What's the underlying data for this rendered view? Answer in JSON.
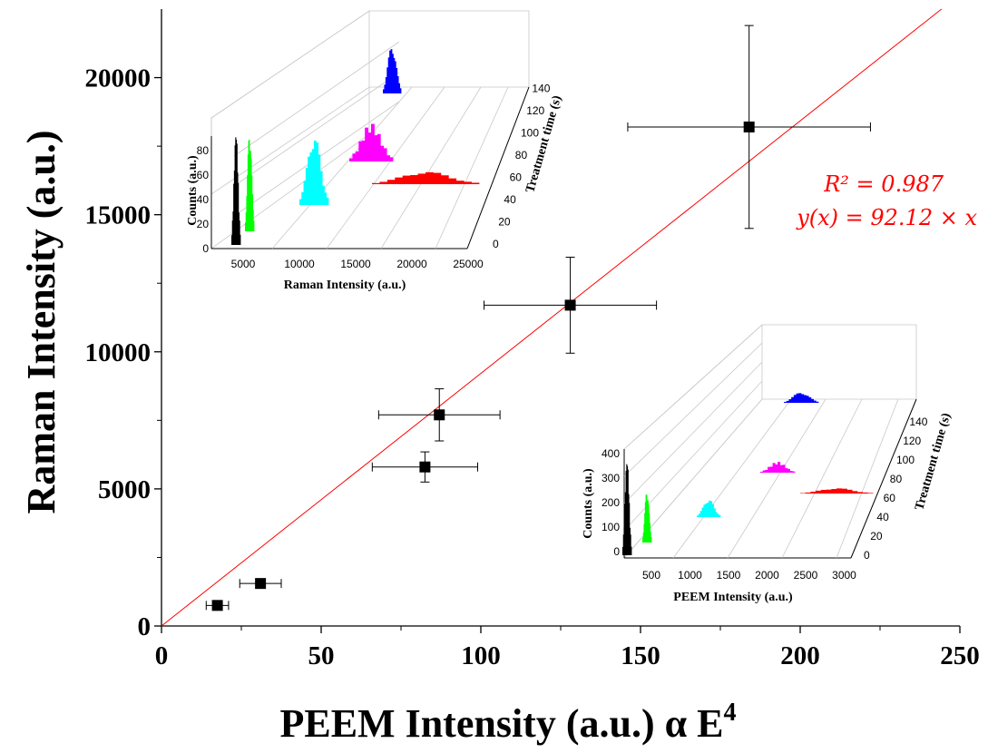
{
  "chart_data": [
    {
      "type": "scatter",
      "xlabel": "PEEM Intensity (a.u.) α E",
      "xlabel_superscript": "4",
      "ylabel": "Raman Intensity (a.u.)",
      "xlim": [
        0,
        250
      ],
      "ylim": [
        0,
        22500
      ],
      "x_ticks": [
        0,
        50,
        100,
        150,
        200,
        250
      ],
      "y_ticks": [
        0,
        5000,
        10000,
        15000,
        20000
      ],
      "points": [
        {
          "x": 17.5,
          "y": 750,
          "xerr": 3.5,
          "yerr": 150
        },
        {
          "x": 31,
          "y": 1550,
          "xerr": 6.5,
          "yerr": 150
        },
        {
          "x": 82.5,
          "y": 5800,
          "xerr": 16.5,
          "yerr": 550
        },
        {
          "x": 87,
          "y": 7700,
          "xerr": 19,
          "yerr": 950
        },
        {
          "x": 128,
          "y": 11700,
          "xerr": 27,
          "yerr": 1750
        },
        {
          "x": 184,
          "y": 18200,
          "xerr": 38,
          "yerr": 3700
        }
      ],
      "fit": {
        "slope": 92.12,
        "color": "#ff0000",
        "r2_label": "R² = 0.987",
        "eq_label": "y(x) = 92.12 × x"
      },
      "marker_color": "#000000"
    },
    {
      "type": "histogram-3d",
      "inset": "top-left",
      "xlabel": "Raman Intensity (a.u.)",
      "ylabel": "Counts (a.u.)",
      "zlabel": "Treatment time (s)",
      "x_ticks": [
        "5000",
        "10000",
        "15000",
        "20000",
        "25000"
      ],
      "y_ticks": [
        "0",
        "20",
        "40",
        "60",
        "80"
      ],
      "z_ticks": [
        "0",
        "20",
        "40",
        "60",
        "80",
        "100",
        "120",
        "140"
      ],
      "series": [
        {
          "color": "#000000",
          "time": 0,
          "center": 1000
        },
        {
          "color": "#00ff00",
          "time": 20,
          "center": 1800
        },
        {
          "color": "#00ffff",
          "time": 40,
          "center": 6000
        },
        {
          "color": "#ff00ff",
          "time": 80,
          "center": 8000
        },
        {
          "color": "#ff0000",
          "time": 60,
          "center": 18000
        },
        {
          "color": "#0000ff",
          "time": 120,
          "center": 12000
        }
      ]
    },
    {
      "type": "histogram-3d",
      "inset": "bottom-right",
      "xlabel": "PEEM Intensity (a.u.)",
      "ylabel": "Counts (a.u.)",
      "zlabel": "Treatment time (s)",
      "x_ticks": [
        "500",
        "1000",
        "1500",
        "2000",
        "2500",
        "3000"
      ],
      "y_ticks": [
        "0",
        "100",
        "200",
        "300",
        "400"
      ],
      "z_ticks": [
        "0",
        "20",
        "40",
        "60",
        "80",
        "100",
        "120",
        "140"
      ],
      "series": [
        {
          "color": "#000000",
          "time": 0,
          "center": 100
        },
        {
          "color": "#00ff00",
          "time": 20,
          "center": 400
        },
        {
          "color": "#00ffff",
          "time": 40,
          "center": 1000
        },
        {
          "color": "#ff00ff",
          "time": 80,
          "center": 1500
        },
        {
          "color": "#ff0000",
          "time": 60,
          "center": 2400
        },
        {
          "color": "#0000ff",
          "time": 120,
          "center": 1800
        }
      ]
    }
  ]
}
